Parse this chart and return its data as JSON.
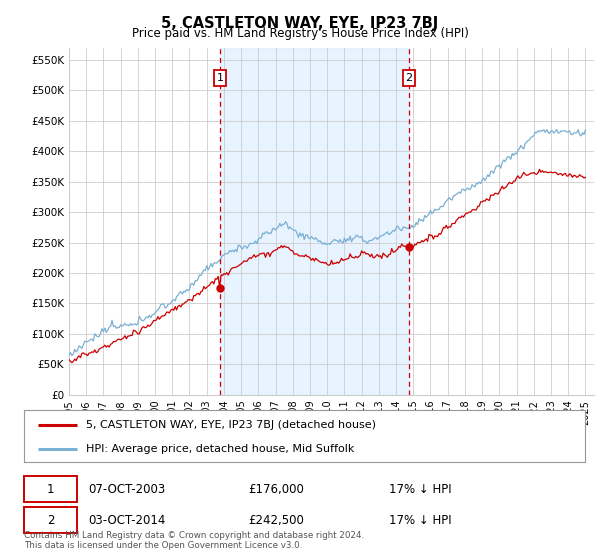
{
  "title": "5, CASTLETON WAY, EYE, IP23 7BJ",
  "subtitle": "Price paid vs. HM Land Registry's House Price Index (HPI)",
  "ylabel_ticks": [
    "£0",
    "£50K",
    "£100K",
    "£150K",
    "£200K",
    "£250K",
    "£300K",
    "£350K",
    "£400K",
    "£450K",
    "£500K",
    "£550K"
  ],
  "ytick_values": [
    0,
    50000,
    100000,
    150000,
    200000,
    250000,
    300000,
    350000,
    400000,
    450000,
    500000,
    550000
  ],
  "ylim": [
    0,
    570000
  ],
  "xlim_start": 1995.0,
  "xlim_end": 2025.5,
  "vline1_x": 2003.77,
  "vline2_x": 2014.75,
  "legend_line1": "5, CASTLETON WAY, EYE, IP23 7BJ (detached house)",
  "legend_line2": "HPI: Average price, detached house, Mid Suffolk",
  "annotation1_label": "1",
  "annotation1_date": "07-OCT-2003",
  "annotation1_price": "£176,000",
  "annotation1_hpi": "17% ↓ HPI",
  "annotation2_label": "2",
  "annotation2_date": "03-OCT-2014",
  "annotation2_price": "£242,500",
  "annotation2_hpi": "17% ↓ HPI",
  "footer": "Contains HM Land Registry data © Crown copyright and database right 2024.\nThis data is licensed under the Open Government Licence v3.0.",
  "line_red_color": "#cc0000",
  "line_blue_color": "#7ab0d4",
  "shade_color": "#ddeeff",
  "vline_color": "#cc0000",
  "grid_color": "#cccccc",
  "background_color": "#ffffff"
}
